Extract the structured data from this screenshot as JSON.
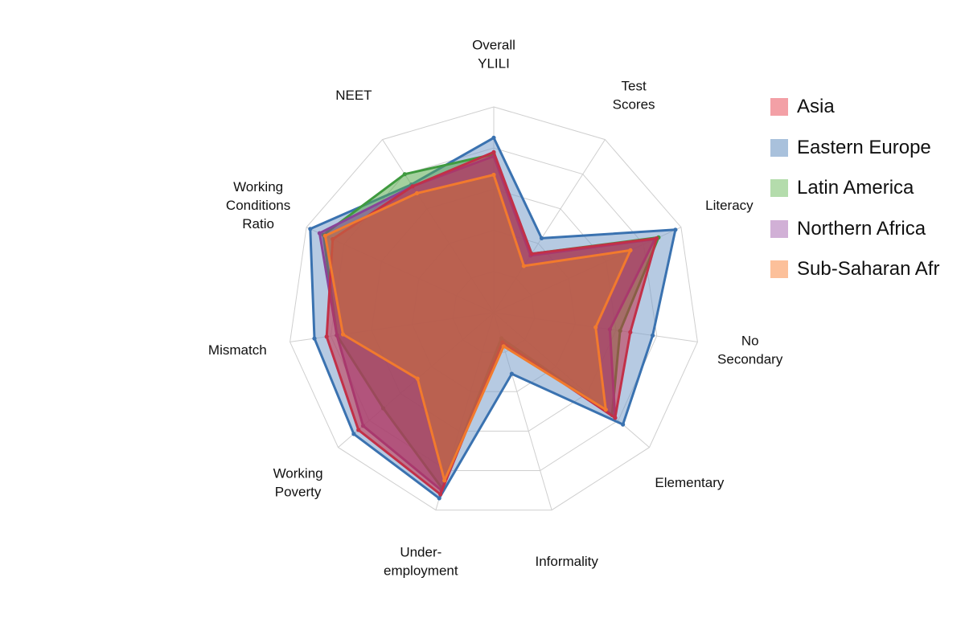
{
  "chart_data": {
    "type": "radar",
    "axes": [
      {
        "key": "overall_ylili",
        "lines": [
          "Overall",
          "YLILI"
        ]
      },
      {
        "key": "test_scores",
        "lines": [
          "Test",
          "Scores"
        ]
      },
      {
        "key": "literacy",
        "lines": [
          "Literacy"
        ]
      },
      {
        "key": "no_secondary",
        "lines": [
          "No",
          "Secondary"
        ]
      },
      {
        "key": "elementary",
        "lines": [
          "Elementary"
        ]
      },
      {
        "key": "informality",
        "lines": [
          "Informality"
        ]
      },
      {
        "key": "underemployment",
        "lines": [
          "Under-",
          "employment"
        ]
      },
      {
        "key": "working_poverty",
        "lines": [
          "Working",
          "Poverty"
        ]
      },
      {
        "key": "mismatch",
        "lines": [
          "Mismatch"
        ]
      },
      {
        "key": "working_conditions_ratio",
        "lines": [
          "Working",
          "Conditions",
          "Ratio"
        ]
      },
      {
        "key": "neet",
        "lines": [
          "NEET"
        ]
      }
    ],
    "rmax": 1.0,
    "grid_levels": [
      0.2,
      0.4,
      0.6,
      0.8,
      1.0
    ],
    "series": [
      {
        "name": "Eastern Europe",
        "color": "#3a72b0",
        "fill": "#7a9fcb",
        "values": [
          0.85,
          0.43,
          0.97,
          0.78,
          0.83,
          0.31,
          0.94,
          0.9,
          0.88,
          0.98,
          0.74
        ]
      },
      {
        "name": "Latin America",
        "color": "#3f9a3f",
        "fill": "#5aaa4e",
        "values": [
          0.77,
          0.34,
          0.88,
          0.62,
          0.76,
          0.13,
          0.89,
          0.71,
          0.77,
          0.91,
          0.8
        ]
      },
      {
        "name": "Northern Africa",
        "color": "#8a4499",
        "fill": "#8a4499",
        "values": [
          0.76,
          0.33,
          0.86,
          0.57,
          0.78,
          0.15,
          0.9,
          0.84,
          0.77,
          0.93,
          0.73
        ]
      },
      {
        "name": "Asia",
        "color": "#c23048",
        "fill": "#c23048",
        "values": [
          0.78,
          0.34,
          0.87,
          0.67,
          0.78,
          0.15,
          0.92,
          0.87,
          0.82,
          0.86,
          0.73
        ]
      },
      {
        "name": "Sub-Saharan Afr",
        "color": "#f27a2d",
        "fill": "#c9703a",
        "values": [
          0.67,
          0.27,
          0.73,
          0.5,
          0.72,
          0.17,
          0.85,
          0.49,
          0.74,
          0.9,
          0.69
        ]
      }
    ],
    "legend": {
      "position": "right",
      "entries": [
        {
          "label": "Asia",
          "color": "#f3a0a6"
        },
        {
          "label": "Eastern Europe",
          "color": "#a9c1dc"
        },
        {
          "label": "Latin America",
          "color": "#b4dcac"
        },
        {
          "label": "Northern Africa",
          "color": "#d1b0d6"
        },
        {
          "label": "Sub-Saharan Afr",
          "color": "#fcc09a"
        }
      ]
    }
  }
}
